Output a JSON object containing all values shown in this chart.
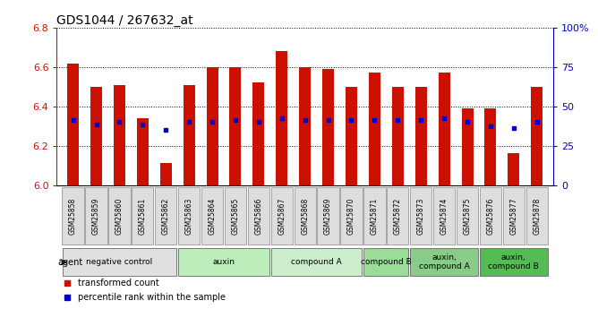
{
  "title": "GDS1044 / 267632_at",
  "samples": [
    "GSM25858",
    "GSM25859",
    "GSM25860",
    "GSM25861",
    "GSM25862",
    "GSM25863",
    "GSM25864",
    "GSM25865",
    "GSM25866",
    "GSM25867",
    "GSM25868",
    "GSM25869",
    "GSM25870",
    "GSM25871",
    "GSM25872",
    "GSM25873",
    "GSM25874",
    "GSM25875",
    "GSM25876",
    "GSM25877",
    "GSM25878"
  ],
  "transformed_count": [
    6.62,
    6.5,
    6.51,
    6.34,
    6.11,
    6.51,
    6.6,
    6.6,
    6.52,
    6.68,
    6.6,
    6.59,
    6.5,
    6.57,
    6.5,
    6.5,
    6.57,
    6.39,
    6.39,
    6.16,
    6.5
  ],
  "percentile_rank": [
    6.33,
    6.31,
    6.32,
    6.31,
    6.28,
    6.32,
    6.32,
    6.33,
    6.32,
    6.34,
    6.33,
    6.33,
    6.33,
    6.33,
    6.33,
    6.33,
    6.34,
    6.32,
    6.3,
    6.29,
    6.32
  ],
  "ylim": [
    6.0,
    6.8
  ],
  "yticks_left": [
    6.0,
    6.2,
    6.4,
    6.6,
    6.8
  ],
  "yticks_right_labels": [
    "0",
    "25",
    "50",
    "75",
    "100%"
  ],
  "bar_color": "#CC1100",
  "dot_color": "#0000CC",
  "background_color": "#FFFFFF",
  "title_fontsize": 10,
  "agent_groups": [
    {
      "label": "negative control",
      "start": 0,
      "end": 5,
      "color": "#E0E0E0"
    },
    {
      "label": "auxin",
      "start": 5,
      "end": 9,
      "color": "#BBEEBB"
    },
    {
      "label": "compound A",
      "start": 9,
      "end": 13,
      "color": "#CCEECC"
    },
    {
      "label": "compound B",
      "start": 13,
      "end": 15,
      "color": "#99DD99"
    },
    {
      "label": "auxin,\ncompound A",
      "start": 15,
      "end": 18,
      "color": "#88CC88"
    },
    {
      "label": "auxin,\ncompound B",
      "start": 18,
      "end": 21,
      "color": "#55BB55"
    }
  ],
  "legend_labels": [
    "transformed count",
    "percentile rank within the sample"
  ],
  "legend_colors": [
    "#CC1100",
    "#0000CC"
  ]
}
